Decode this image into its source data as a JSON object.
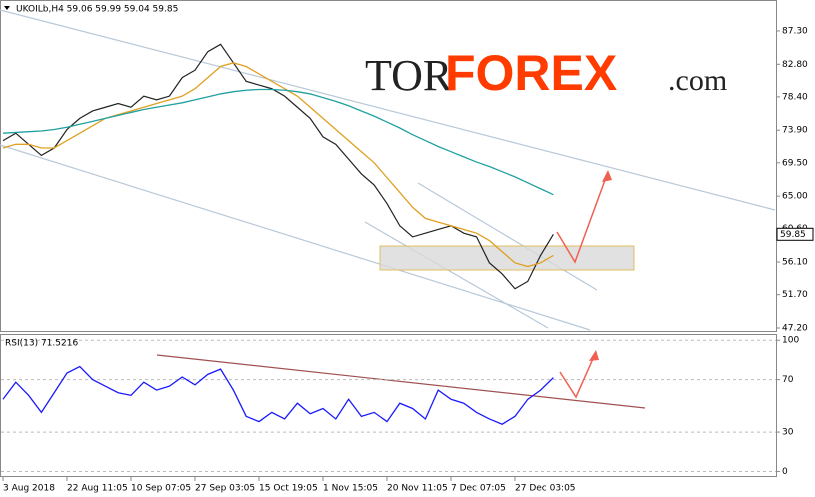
{
  "chart_data": [
    {
      "type": "line",
      "title": "UKOILb,H4  59.06 59.99 59.04 59.85",
      "logo": [
        "TOR",
        "FOREX",
        ".com"
      ],
      "categories": [
        "3 Aug 2018",
        null,
        null,
        null,
        null,
        "22 Aug 11:05",
        null,
        null,
        null,
        null,
        "10 Sep 07:05",
        null,
        null,
        null,
        null,
        "27 Sep 03:05",
        null,
        null,
        null,
        null,
        "15 Oct 19:05",
        null,
        null,
        null,
        null,
        "1 Nov 15:05",
        null,
        null,
        null,
        null,
        "20 Nov 11:05",
        null,
        null,
        null,
        null,
        "7 Dec 07:05",
        null,
        null,
        null,
        null,
        "27 Dec 03:05",
        null,
        null,
        null
      ],
      "series": [
        {
          "color": "#222222",
          "values": [
            72.5,
            73.5,
            72,
            70.5,
            71.5,
            74,
            75.5,
            76.5,
            77,
            77.5,
            77,
            78.5,
            78,
            78.5,
            81,
            82,
            84.5,
            85.5,
            83,
            80.5,
            80,
            79.5,
            78.5,
            77,
            75.5,
            73,
            72,
            70,
            68,
            66.5,
            64,
            61,
            59.5,
            60,
            60.5,
            61,
            60,
            59.5,
            56,
            54.5,
            52.5,
            53.5,
            57,
            59.85
          ]
        },
        {
          "color": "#e0a020",
          "values": [
            71.5,
            72,
            72,
            71.5,
            71.5,
            72.5,
            73.5,
            74.5,
            75.5,
            76,
            76.5,
            77,
            77.5,
            78,
            78.5,
            79.5,
            81,
            82.5,
            83,
            82.5,
            81.5,
            80.5,
            79.5,
            78.5,
            77,
            75.5,
            74,
            72.5,
            71,
            69.5,
            67.5,
            65.5,
            63.5,
            62,
            61.5,
            61,
            60.5,
            60,
            59,
            57.5,
            56,
            55.5,
            56,
            57
          ]
        },
        {
          "color": "#20a0a0",
          "values": [
            73.5,
            73.6,
            73.7,
            73.8,
            74,
            74.3,
            74.7,
            75.1,
            75.5,
            75.9,
            76.3,
            76.7,
            77,
            77.3,
            77.6,
            78,
            78.4,
            78.8,
            79.1,
            79.3,
            79.4,
            79.4,
            79.3,
            79.1,
            78.8,
            78.3,
            77.8,
            77.2,
            76.5,
            75.8,
            75,
            74.2,
            73.3,
            72.5,
            71.7,
            71,
            70.3,
            69.6,
            69,
            68.3,
            67.6,
            66.8,
            66,
            65.2
          ]
        }
      ],
      "ylim": [
        46.93,
        89.86
      ],
      "yticks": [
        {
          "value": 87.3,
          "label": "87.30"
        },
        {
          "value": 82.8,
          "label": "82.80"
        },
        {
          "value": 78.4,
          "label": "78.40"
        },
        {
          "value": 73.9,
          "label": "73.90"
        },
        {
          "value": 69.5,
          "label": "69.50"
        },
        {
          "value": 65,
          "label": "65.00"
        },
        {
          "value": 60.6,
          "label": "60.60"
        },
        {
          "value": 56.1,
          "label": "56.10"
        },
        {
          "value": 51.7,
          "label": "51.70"
        },
        {
          "value": 47.2,
          "label": "47.20"
        }
      ],
      "price_marker": {
        "value": 59.85,
        "label": "59.85"
      }
    },
    {
      "type": "line",
      "title": "RSI(13) 71.5216",
      "series": [
        {
          "color": "#1a1aff",
          "values": [
            55,
            68,
            58,
            45,
            60,
            75,
            80,
            70,
            65,
            60,
            58,
            68,
            62,
            65,
            72,
            66,
            74,
            78,
            62,
            42,
            38,
            45,
            40,
            52,
            44,
            48,
            40,
            55,
            42,
            45,
            38,
            52,
            48,
            40,
            62,
            55,
            52,
            45,
            40,
            36,
            42,
            55,
            62,
            71.52
          ]
        }
      ],
      "ylim": [
        -5,
        104
      ],
      "yticks": [
        100,
        70,
        30,
        0
      ]
    }
  ]
}
